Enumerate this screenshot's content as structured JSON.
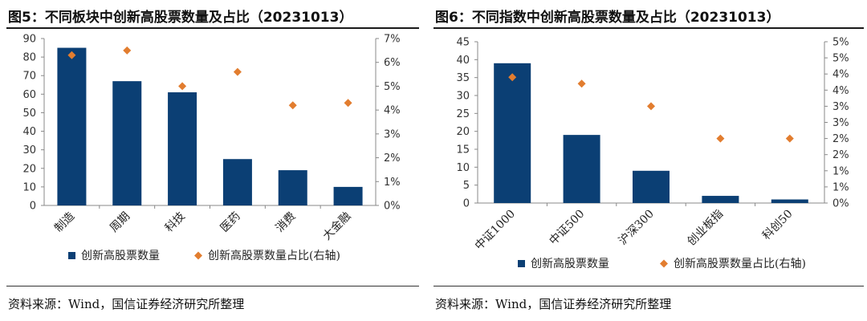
{
  "colors": {
    "bar": "#0b3f74",
    "marker": "#e27d2f",
    "axis": "#888888"
  },
  "charts": [
    {
      "title": "图5：不同板块中创新高股票数量及占比（20231013）",
      "source": "资料来源：Wind，国信证券经济研究所整理",
      "legend": {
        "bar": "创新高股票数量",
        "marker": "创新高股票数量占比(右轴)",
        "position": "bottom"
      },
      "left_ticks": [
        "0",
        "10",
        "20",
        "30",
        "40",
        "50",
        "60",
        "70",
        "80",
        "90"
      ],
      "right_ticks": [
        "0%",
        "1%",
        "2%",
        "3%",
        "4%",
        "5%",
        "6%",
        "7%"
      ]
    },
    {
      "title": "图6：不同指数中创新高股票数量及占比（20231013）",
      "source": "资料来源：Wind，国信证券经济研究所整理",
      "legend": {
        "bar": "创新高股票数量",
        "marker": "创新高股票数量占比(右轴)",
        "position": "bottom"
      },
      "left_ticks": [
        "0",
        "5",
        "10",
        "15",
        "20",
        "25",
        "30",
        "35",
        "40",
        "45"
      ],
      "right_ticks": [
        "0%",
        "1%",
        "1%",
        "2%",
        "2%",
        "3%",
        "3%",
        "4%",
        "4%",
        "5%",
        "5%"
      ]
    }
  ],
  "chart_data": [
    {
      "type": "bar",
      "categories": [
        "制造",
        "周期",
        "科技",
        "医药",
        "消费",
        "大金融"
      ],
      "series": [
        {
          "name": "创新高股票数量",
          "type": "bar",
          "axis": "left",
          "values": [
            85,
            67,
            61,
            25,
            19,
            10
          ]
        },
        {
          "name": "创新高股票数量占比(右轴)",
          "type": "scatter",
          "axis": "right",
          "values": [
            6.3,
            6.5,
            5.0,
            5.6,
            4.2,
            4.3
          ]
        }
      ],
      "ylim": [
        0,
        90
      ],
      "y2lim": [
        0,
        7
      ],
      "grid": false,
      "legend_position": "bottom"
    },
    {
      "type": "bar",
      "categories": [
        "中证1000",
        "中证500",
        "沪深300",
        "创业板指",
        "科创50"
      ],
      "series": [
        {
          "name": "创新高股票数量",
          "type": "bar",
          "axis": "left",
          "values": [
            39,
            19,
            9,
            2,
            1
          ]
        },
        {
          "name": "创新高股票数量占比(右轴)",
          "type": "scatter",
          "axis": "right",
          "values": [
            3.9,
            3.7,
            3.0,
            2.0,
            2.0
          ]
        }
      ],
      "ylim": [
        0,
        45
      ],
      "y2lim": [
        0,
        5
      ],
      "grid": false,
      "legend_position": "bottom"
    }
  ]
}
